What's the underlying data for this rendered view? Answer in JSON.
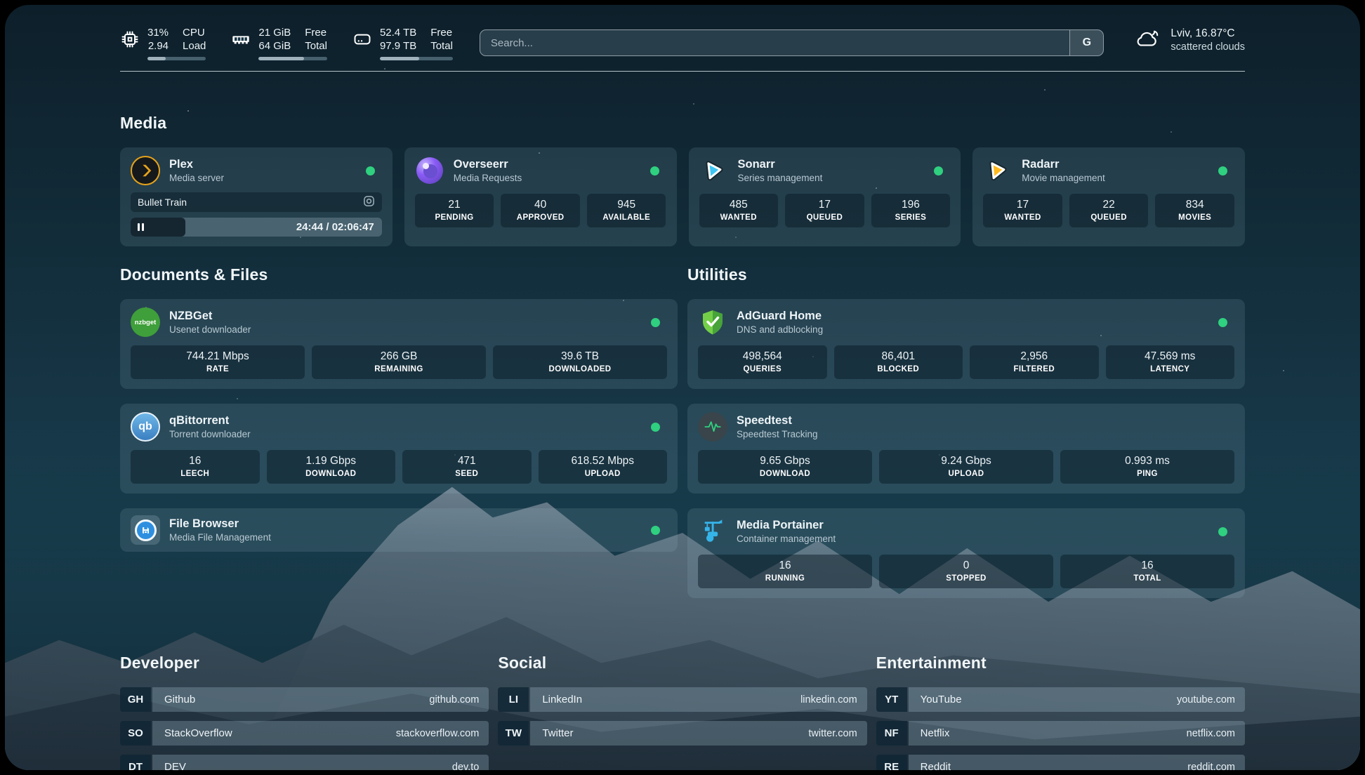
{
  "header": {
    "stats": [
      {
        "icon": "cpu-icon",
        "value_1": "31%",
        "value_2": "2.94",
        "label_1": "CPU",
        "label_2": "Load",
        "progress_pct": 31
      },
      {
        "icon": "memory-icon",
        "value_1": "21 GiB",
        "value_2": "64 GiB",
        "label_1": "Free",
        "label_2": "Total",
        "progress_pct": 66
      },
      {
        "icon": "disk-icon",
        "value_1": "52.4 TB",
        "value_2": "97.9 TB",
        "label_1": "Free",
        "label_2": "Total",
        "progress_pct": 54
      }
    ],
    "search": {
      "placeholder": "Search...",
      "engine_button": "G"
    },
    "weather": {
      "icon": "cloud-icon",
      "location_temp": "Lviv, 16.87°C",
      "condition": "scattered clouds"
    }
  },
  "sections": {
    "media": {
      "title": "Media",
      "plex": {
        "name": "Plex",
        "description": "Media server",
        "status": "online",
        "now_playing": {
          "title": "Bullet Train",
          "time": "24:44 / 02:06:47",
          "progress_pct": 19
        }
      },
      "overseerr": {
        "name": "Overseerr",
        "description": "Media Requests",
        "status": "online",
        "stats": [
          {
            "value": "21",
            "label": "PENDING"
          },
          {
            "value": "40",
            "label": "APPROVED"
          },
          {
            "value": "945",
            "label": "AVAILABLE"
          }
        ]
      },
      "sonarr": {
        "name": "Sonarr",
        "description": "Series management",
        "status": "online",
        "stats": [
          {
            "value": "485",
            "label": "WANTED"
          },
          {
            "value": "17",
            "label": "QUEUED"
          },
          {
            "value": "196",
            "label": "SERIES"
          }
        ]
      },
      "radarr": {
        "name": "Radarr",
        "description": "Movie management",
        "status": "online",
        "stats": [
          {
            "value": "17",
            "label": "WANTED"
          },
          {
            "value": "22",
            "label": "QUEUED"
          },
          {
            "value": "834",
            "label": "MOVIES"
          }
        ]
      }
    },
    "documents": {
      "title": "Documents & Files",
      "nzbget": {
        "name": "NZBGet",
        "description": "Usenet downloader",
        "icon_text": "nzbget",
        "status": "online",
        "stats": [
          {
            "value": "744.21 Mbps",
            "label": "RATE"
          },
          {
            "value": "266 GB",
            "label": "REMAINING"
          },
          {
            "value": "39.6 TB",
            "label": "DOWNLOADED"
          }
        ]
      },
      "qbittorrent": {
        "name": "qBittorrent",
        "description": "Torrent downloader",
        "icon_text": "qb",
        "status": "online",
        "stats": [
          {
            "value": "16",
            "label": "LEECH"
          },
          {
            "value": "1.19 Gbps",
            "label": "DOWNLOAD"
          },
          {
            "value": "471",
            "label": "SEED"
          },
          {
            "value": "618.52 Mbps",
            "label": "UPLOAD"
          }
        ]
      },
      "filebrowser": {
        "name": "File Browser",
        "description": "Media File Management",
        "status": "online"
      }
    },
    "utilities": {
      "title": "Utilities",
      "adguard": {
        "name": "AdGuard Home",
        "description": "DNS and adblocking",
        "status": "online",
        "stats": [
          {
            "value": "498,564",
            "label": "QUERIES"
          },
          {
            "value": "86,401",
            "label": "BLOCKED"
          },
          {
            "value": "2,956",
            "label": "FILTERED"
          },
          {
            "value": "47.569 ms",
            "label": "LATENCY"
          }
        ]
      },
      "speedtest": {
        "name": "Speedtest",
        "description": "Speedtest Tracking",
        "stats": [
          {
            "value": "9.65 Gbps",
            "label": "DOWNLOAD"
          },
          {
            "value": "9.24 Gbps",
            "label": "UPLOAD"
          },
          {
            "value": "0.993 ms",
            "label": "PING"
          }
        ]
      },
      "portainer": {
        "name": "Media Portainer",
        "description": "Container management",
        "status": "online",
        "stats": [
          {
            "value": "16",
            "label": "RUNNING"
          },
          {
            "value": "0",
            "label": "STOPPED"
          },
          {
            "value": "16",
            "label": "TOTAL"
          }
        ]
      }
    },
    "developer": {
      "title": "Developer",
      "links": [
        {
          "abbr": "GH",
          "name": "Github",
          "url": "github.com"
        },
        {
          "abbr": "SO",
          "name": "StackOverflow",
          "url": "stackoverflow.com"
        },
        {
          "abbr": "DT",
          "name": "DEV",
          "url": "dev.to"
        }
      ]
    },
    "social": {
      "title": "Social",
      "links": [
        {
          "abbr": "LI",
          "name": "LinkedIn",
          "url": "linkedin.com"
        },
        {
          "abbr": "TW",
          "name": "Twitter",
          "url": "twitter.com"
        }
      ]
    },
    "entertainment": {
      "title": "Entertainment",
      "links": [
        {
          "abbr": "YT",
          "name": "YouTube",
          "url": "youtube.com"
        },
        {
          "abbr": "NF",
          "name": "Netflix",
          "url": "netflix.com"
        },
        {
          "abbr": "RE",
          "name": "Reddit",
          "url": "reddit.com"
        }
      ]
    }
  },
  "colors": {
    "status_online": "#2fd07f",
    "plex_accent": "#e6a21b"
  }
}
